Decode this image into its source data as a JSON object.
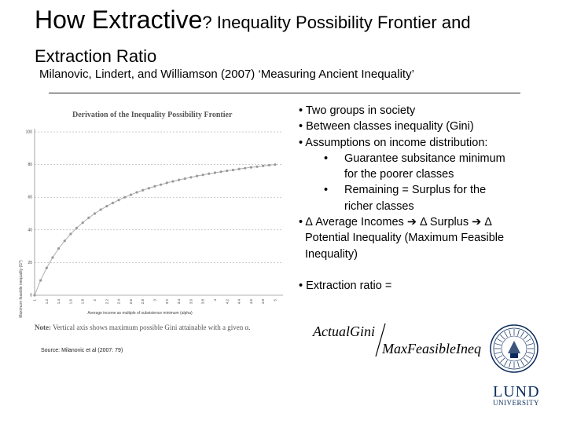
{
  "slide": {
    "title_big": "How Extractive",
    "title_rest": "? Inequality Possibility Frontier and",
    "title_line2": "Extraction Ratio",
    "subtitle": "Milanovic, Lindert, and Williamson (2007) ‘Measuring Ancient Inequality’"
  },
  "figure": {
    "note_bold": "Note:",
    "note_text": " Vertical axis shows maximum possible Gini attainable with a given α.",
    "source": "Source: Milanovic et al (2007: 79)"
  },
  "chart_data": {
    "type": "line",
    "title": "Derivation of the Inequality Possibility Frontier",
    "xlabel": "Average income as multiple of subsistence minimum (alpha)",
    "ylabel": "Maximum feasible inequality (G*)",
    "ylim": [
      0,
      100
    ],
    "y_ticks": [
      "0",
      "20",
      "40",
      "60",
      "80",
      "100"
    ],
    "x_tick_labels": [
      "1",
      "1.2",
      "1.4",
      "1.6",
      "1.8",
      "2",
      "2.2",
      "2.4",
      "2.6",
      "2.8",
      "3",
      "3.2",
      "3.4",
      "3.6",
      "3.8",
      "4",
      "4.2",
      "4.4",
      "4.6",
      "4.8",
      "5"
    ],
    "grid": true,
    "marker_color": "#9a9a9a",
    "series": [
      {
        "x": [
          1,
          1.1,
          1.2,
          1.3,
          1.4,
          1.5,
          1.6,
          1.7,
          1.8,
          1.9,
          2,
          2.1,
          2.2,
          2.3,
          2.4,
          2.5,
          2.6,
          2.7,
          2.8,
          2.9,
          3,
          3.1,
          3.2,
          3.3,
          3.4,
          3.5,
          3.6,
          3.7,
          3.8,
          3.9,
          4,
          4.1,
          4.2,
          4.3,
          4.4,
          4.5,
          4.6,
          4.7,
          4.8,
          4.9,
          5
        ],
        "values": [
          0,
          9.1,
          16.7,
          23.1,
          28.6,
          33.3,
          37.5,
          41.2,
          44.4,
          47.4,
          50,
          52.4,
          54.5,
          56.5,
          58.3,
          60,
          61.5,
          63,
          64.3,
          65.5,
          66.7,
          67.7,
          68.8,
          69.7,
          70.6,
          71.4,
          72.2,
          73,
          73.7,
          74.4,
          75,
          75.6,
          76.2,
          76.7,
          77.3,
          77.8,
          78.3,
          78.7,
          79.2,
          79.6,
          80
        ]
      }
    ]
  },
  "bullets": {
    "b1": "• Two groups in society",
    "b2": "• Between classes inequality (Gini)",
    "b3": "• Assumptions on income distribution:",
    "sub_dot": "•",
    "s1a": "Guarantee subsitance minimum",
    "s1b": "for the poorer classes",
    "s2a": "Remaining = Surplus for the",
    "s2b": "richer classes",
    "b4": "• Δ Average Incomes ➔ Δ Surplus ➔ Δ",
    "b4b": "Potential Inequality (Maximum Feasible",
    "b4c": "Inequality)",
    "extraction": "• Extraction ratio ="
  },
  "formula": {
    "numerator": "ActualGini",
    "denominator": "MaxFeasibleIneq"
  },
  "logo": {
    "line1": "LUND",
    "line2": "UNIVERSITY",
    "color": "#0a2b5c"
  }
}
